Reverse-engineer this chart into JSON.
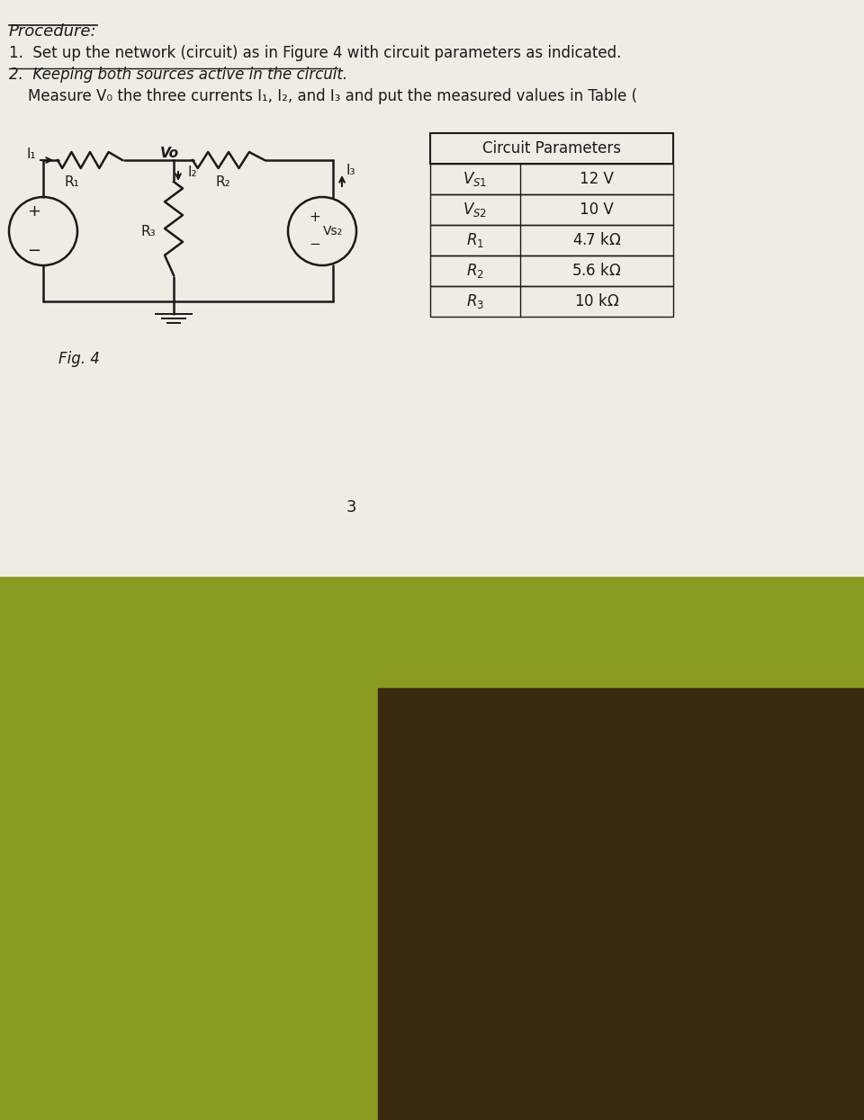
{
  "paper_color": "#f0ece4",
  "fabric_green": "#8a9a20",
  "fabric_dark": "#3a2a10",
  "text_color": "#1a1a1a",
  "procedure_label": "Procedure:",
  "line1": "1.  Set up the network (circuit) as in Figure 4 with circuit parameters as indicated.",
  "line2": "2.  Keeping both sources active in the circuit.",
  "line3": "    Measure V₀ the three currents I₁, I₂, and I₃ and put the measured values in Table (",
  "fig_label": "Fig. 4",
  "table_title": "Circuit Parameters",
  "table_rows": [
    [
      "Vs1",
      "12 V"
    ],
    [
      "Vs2",
      "10 V"
    ],
    [
      "R1",
      "4.7 kΩ"
    ],
    [
      "R2",
      "5.6 kΩ"
    ],
    [
      "R3",
      "10 kΩ"
    ]
  ],
  "page_number": "3"
}
